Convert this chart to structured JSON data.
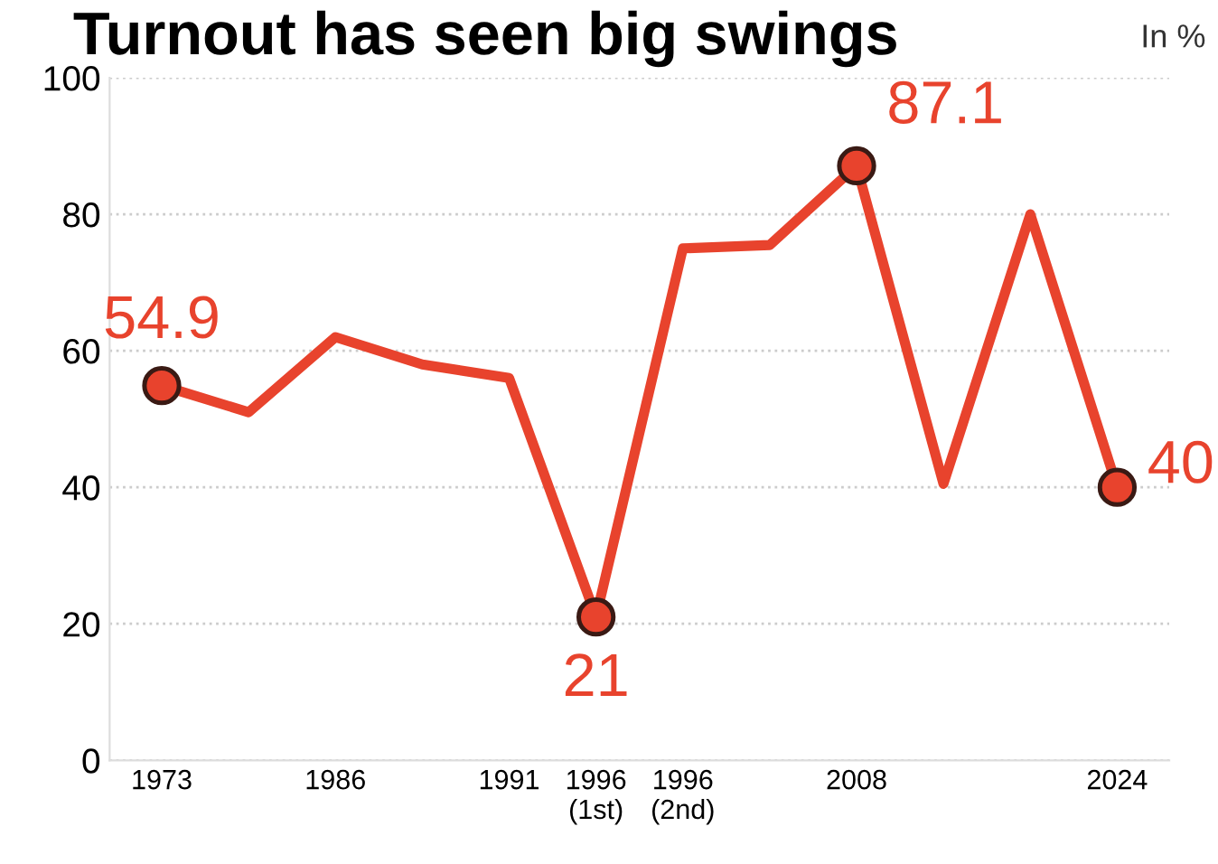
{
  "chart_data": {
    "type": "line",
    "title": "Turnout has seen big swings",
    "annotations": [
      "In %"
    ],
    "categories": [
      "1973",
      null,
      "1986",
      null,
      "1991",
      "1996\n(1st)",
      "1996\n(2nd)",
      null,
      "2008",
      null,
      null,
      "2024"
    ],
    "series": [
      {
        "color": "#e8432d",
        "values": [
          54.9,
          51,
          62,
          58,
          56,
          21,
          75,
          75.5,
          87.1,
          40.5,
          80,
          40
        ],
        "value_labels": [
          "54.9",
          null,
          null,
          null,
          null,
          "21",
          null,
          null,
          "87.1",
          null,
          null,
          "40"
        ]
      }
    ],
    "ylim": [
      0,
      100
    ],
    "yticks": [
      0,
      20,
      40,
      60,
      80,
      100
    ],
    "grid": "y",
    "line_style": "solid"
  }
}
